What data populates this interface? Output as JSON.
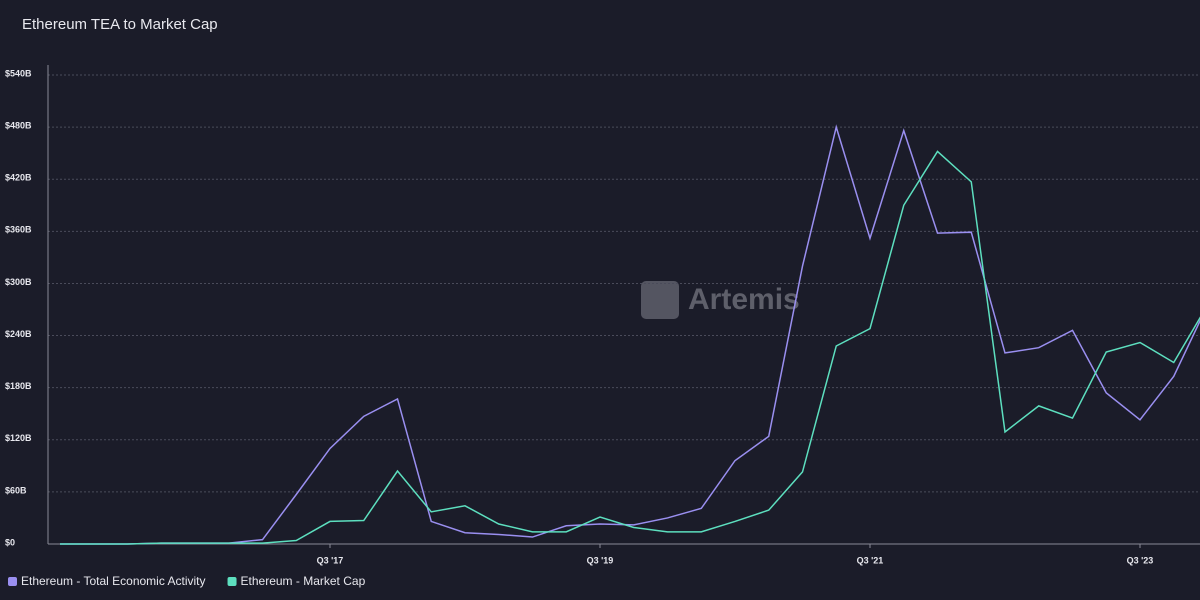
{
  "chart_data": {
    "type": "line",
    "title": "Ethereum TEA to Market Cap",
    "watermark": "Artemis",
    "categories": [
      null,
      null,
      null,
      null,
      null,
      null,
      null,
      null,
      "Q3 '17",
      null,
      null,
      null,
      null,
      null,
      null,
      null,
      "Q3 '19",
      null,
      null,
      null,
      null,
      null,
      null,
      null,
      "Q3 '21",
      null,
      null,
      null,
      null,
      null,
      null,
      null,
      "Q3 '23",
      null,
      null
    ],
    "series": [
      {
        "name": "Ethereum - Total Economic Activity",
        "color": "#9a8ff0",
        "values": [
          0,
          0,
          0,
          1,
          1,
          1,
          5,
          57,
          110,
          147,
          167,
          26,
          13,
          11,
          8,
          21,
          23,
          22,
          30,
          41,
          96,
          124,
          320,
          480,
          352,
          476,
          358,
          359,
          220,
          226,
          246,
          174,
          143,
          193,
          275
        ]
      },
      {
        "name": "Ethereum - Market Cap",
        "color": "#5ddfbf",
        "values": [
          0,
          0,
          0,
          1,
          1,
          1,
          1,
          4,
          26,
          27,
          84,
          37,
          44,
          23,
          14,
          14,
          31,
          19,
          14,
          14,
          26,
          39,
          83,
          228,
          248,
          390,
          452,
          417,
          129,
          159,
          145,
          221,
          232,
          209,
          275
        ]
      }
    ],
    "ylim": [
      0,
      540
    ],
    "yticks": [
      {
        "value": 0,
        "label": "$0"
      },
      {
        "value": 60,
        "label": "$60B"
      },
      {
        "value": 120,
        "label": "$120B"
      },
      {
        "value": 180,
        "label": "$180B"
      },
      {
        "value": 240,
        "label": "$240B"
      },
      {
        "value": 300,
        "label": "$300B"
      },
      {
        "value": 360,
        "label": "$360B"
      },
      {
        "value": 420,
        "label": "$420B"
      },
      {
        "value": 480,
        "label": "$480B"
      },
      {
        "value": 540,
        "label": "$540B"
      }
    ],
    "grid": true
  }
}
